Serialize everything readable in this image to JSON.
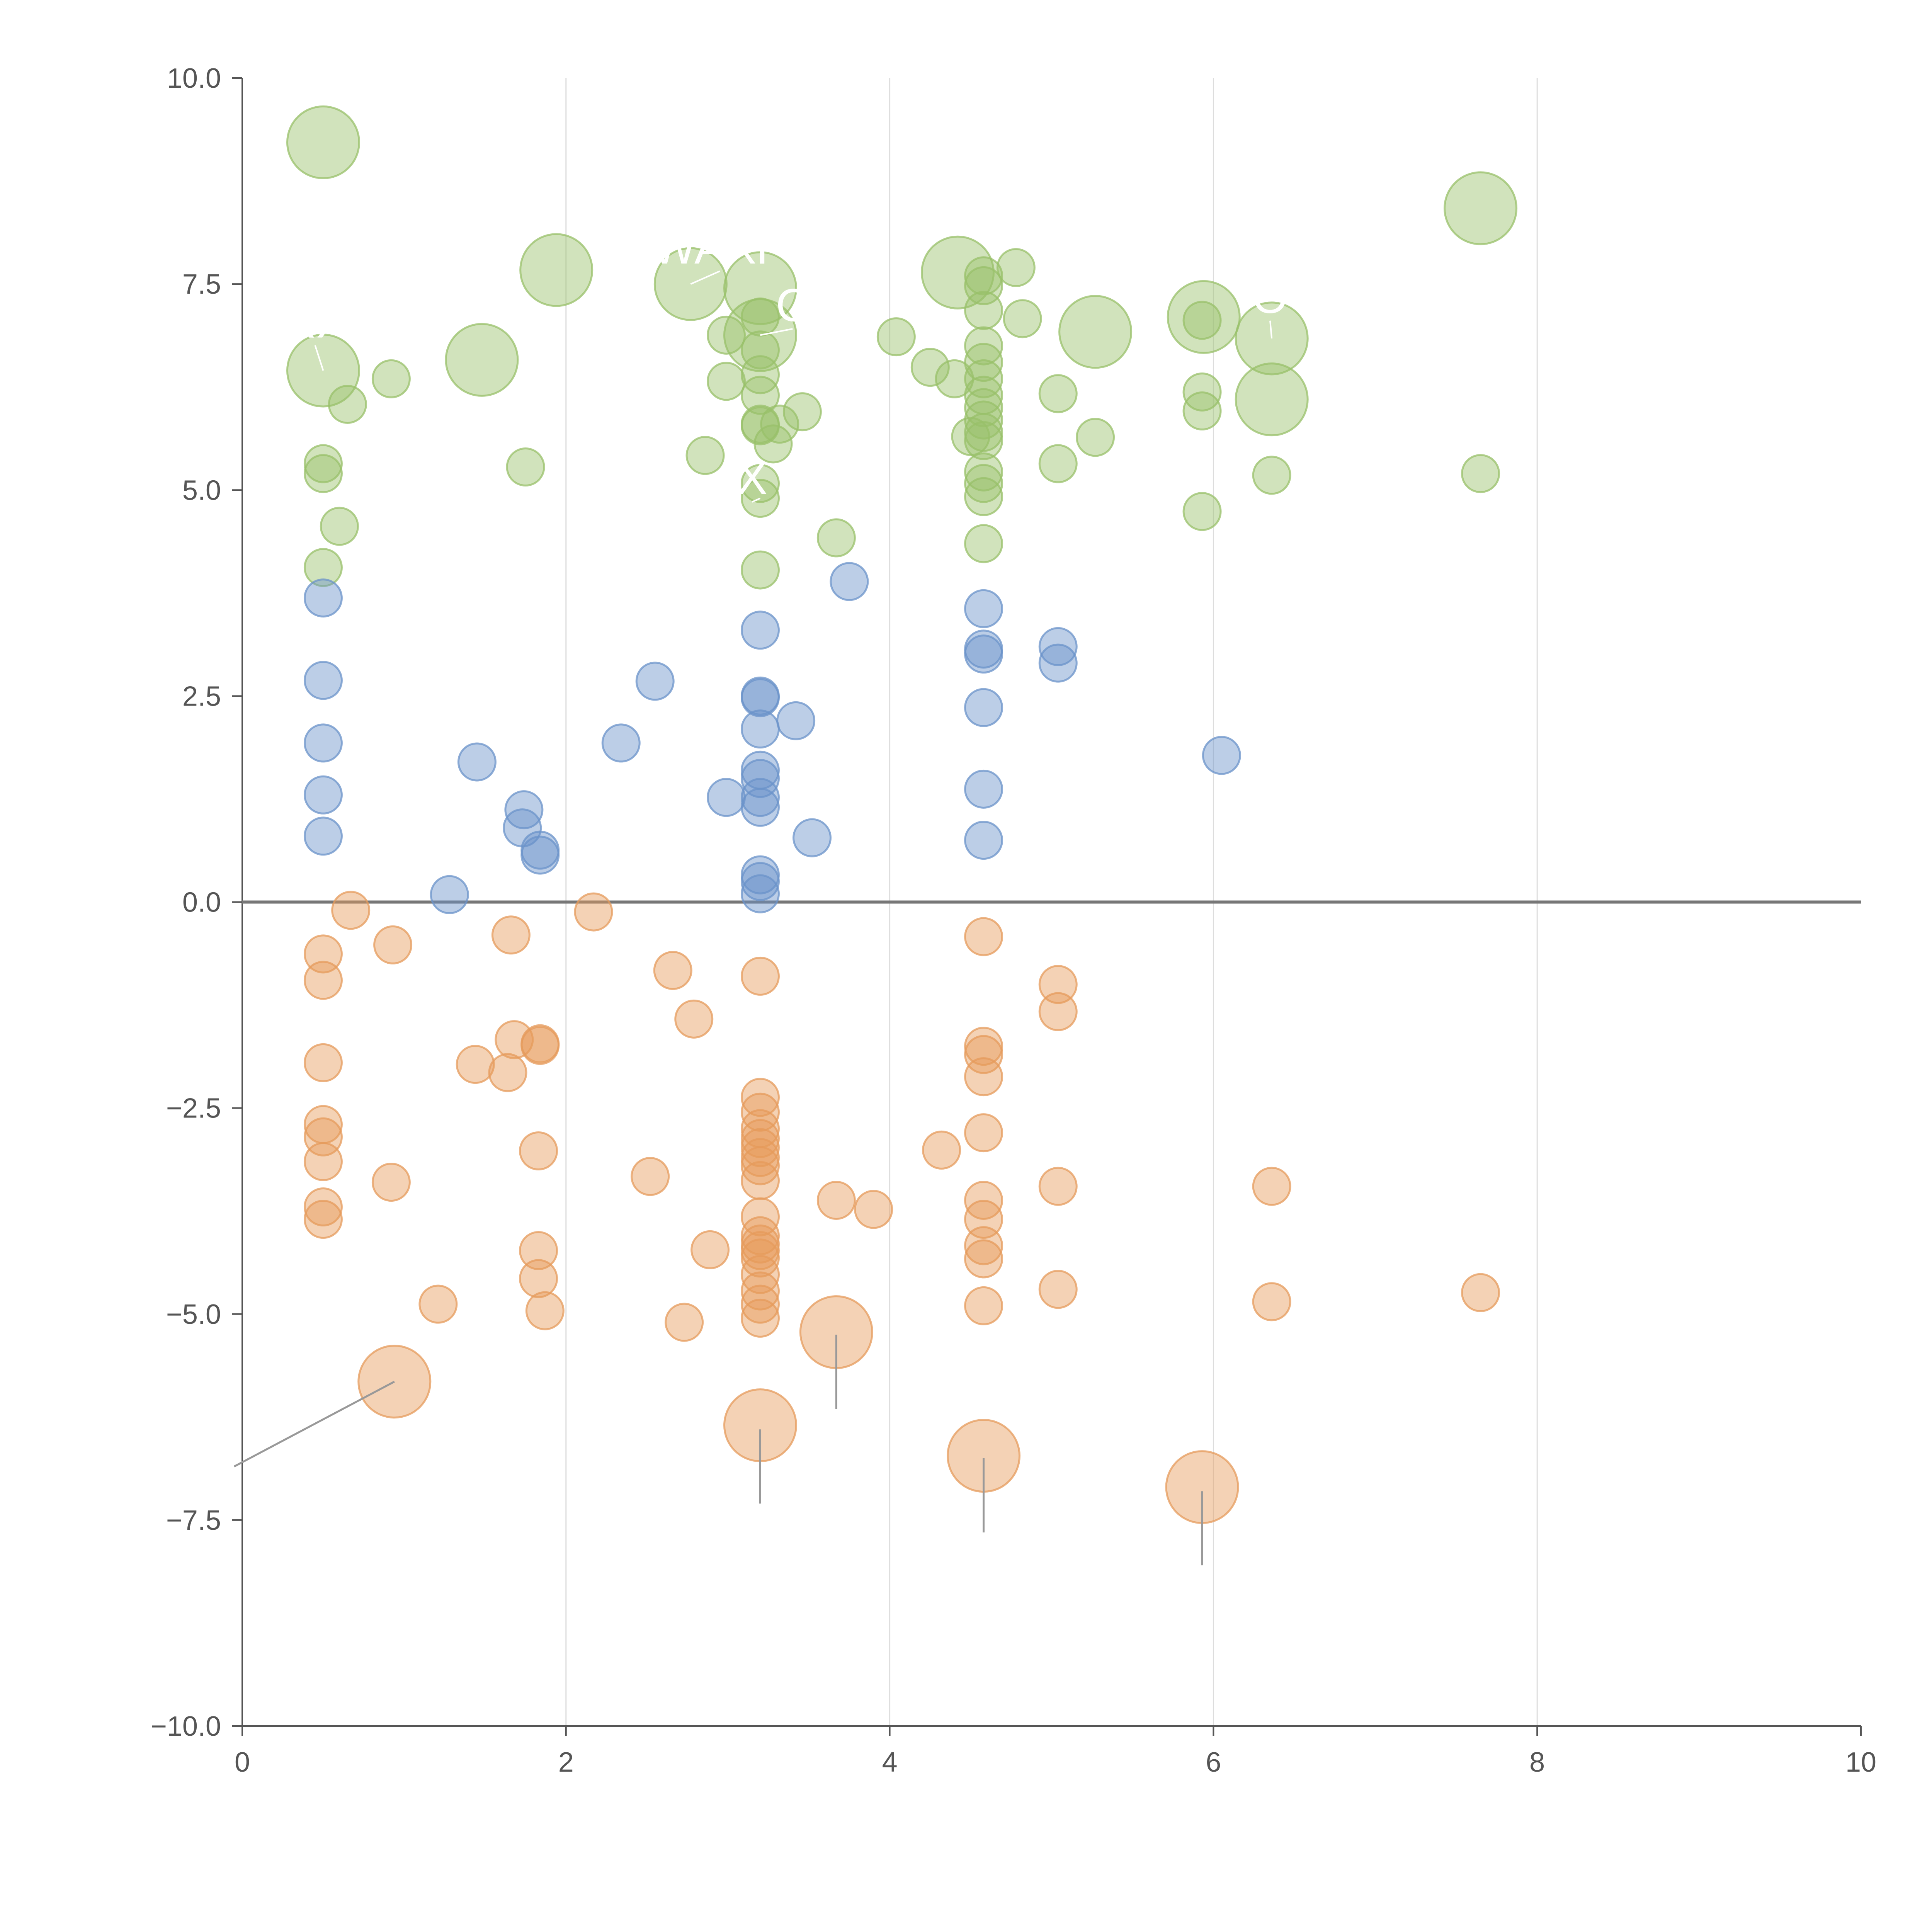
{
  "chart_data": {
    "type": "scatter",
    "subtype": "bubble",
    "title": "",
    "xlabel": "",
    "ylabel": "",
    "xlim": [
      0,
      10
    ],
    "ylim": [
      -10,
      10
    ],
    "x_ticks": [
      {
        "value": 0,
        "label": "0"
      },
      {
        "value": 2,
        "label": "2"
      },
      {
        "value": 4,
        "label": "4"
      },
      {
        "value": 6,
        "label": "6"
      },
      {
        "value": 8,
        "label": "8"
      },
      {
        "value": 10,
        "label": "10"
      }
    ],
    "y_ticks": [
      {
        "value": 10,
        "label": "10.0"
      },
      {
        "value": 7.5,
        "label": "7.5"
      },
      {
        "value": 5,
        "label": "5.0"
      },
      {
        "value": 2.5,
        "label": "2.5"
      },
      {
        "value": 0,
        "label": "0.0"
      },
      {
        "value": -2.5,
        "label": "−2.5"
      },
      {
        "value": -5,
        "label": "−5.0"
      },
      {
        "value": -7.5,
        "label": "−7.5"
      },
      {
        "value": -10,
        "label": "−10.0"
      }
    ],
    "vertical_gridlines_at": [
      2,
      4,
      6,
      8
    ],
    "zero_line": 0,
    "colors": {
      "high": "#98c06a",
      "mid": "#6b93c9",
      "low": "#e69b5c",
      "axis": "#555555",
      "grid": "#dddddd",
      "zero": "#777777",
      "leader": "#999999"
    },
    "series": [
      {
        "name": "high",
        "color_key": "high",
        "points": [
          {
            "x": 0.5,
            "y": 9.22,
            "s": 3
          },
          {
            "x": 1.94,
            "y": 7.67,
            "s": 3
          },
          {
            "x": 2.77,
            "y": 7.5,
            "s": 3
          },
          {
            "x": 3.2,
            "y": 7.45,
            "s": 3
          },
          {
            "x": 4.42,
            "y": 7.64,
            "s": 3
          },
          {
            "x": 5.27,
            "y": 6.92,
            "s": 3
          },
          {
            "x": 5.94,
            "y": 7.1,
            "s": 3
          },
          {
            "x": 6.36,
            "y": 6.84,
            "s": 3
          },
          {
            "x": 6.36,
            "y": 6.1,
            "s": 3
          },
          {
            "x": 7.65,
            "y": 8.42,
            "s": 3
          },
          {
            "x": 1.48,
            "y": 6.58,
            "s": 3
          },
          {
            "x": 0.5,
            "y": 6.45,
            "s": 3
          },
          {
            "x": 3.2,
            "y": 6.88,
            "s": 3
          },
          {
            "x": 0.65,
            "y": 6.04,
            "s": 1
          },
          {
            "x": 0.92,
            "y": 6.35,
            "s": 1
          },
          {
            "x": 0.5,
            "y": 5.32,
            "s": 1
          },
          {
            "x": 0.5,
            "y": 5.2,
            "s": 1
          },
          {
            "x": 0.6,
            "y": 4.56,
            "s": 1
          },
          {
            "x": 0.5,
            "y": 4.06,
            "s": 1
          },
          {
            "x": 1.75,
            "y": 5.28,
            "s": 1
          },
          {
            "x": 2.99,
            "y": 6.88,
            "s": 1
          },
          {
            "x": 2.99,
            "y": 6.32,
            "s": 1
          },
          {
            "x": 2.86,
            "y": 5.42,
            "s": 1
          },
          {
            "x": 3.2,
            "y": 7.1,
            "s": 1
          },
          {
            "x": 3.2,
            "y": 6.7,
            "s": 1
          },
          {
            "x": 3.2,
            "y": 6.4,
            "s": 1
          },
          {
            "x": 3.2,
            "y": 6.15,
            "s": 1
          },
          {
            "x": 3.2,
            "y": 5.8,
            "s": 1
          },
          {
            "x": 3.2,
            "y": 5.78,
            "s": 1
          },
          {
            "x": 3.28,
            "y": 5.56,
            "s": 1
          },
          {
            "x": 3.32,
            "y": 5.8,
            "s": 1
          },
          {
            "x": 3.46,
            "y": 5.95,
            "s": 1
          },
          {
            "x": 3.2,
            "y": 5.08,
            "s": 1
          },
          {
            "x": 3.2,
            "y": 4.9,
            "s": 1
          },
          {
            "x": 3.2,
            "y": 4.03,
            "s": 1
          },
          {
            "x": 3.67,
            "y": 4.42,
            "s": 1
          },
          {
            "x": 4.04,
            "y": 6.86,
            "s": 1
          },
          {
            "x": 4.25,
            "y": 6.49,
            "s": 1
          },
          {
            "x": 4.4,
            "y": 6.35,
            "s": 1
          },
          {
            "x": 4.78,
            "y": 7.7,
            "s": 1
          },
          {
            "x": 4.82,
            "y": 7.08,
            "s": 1
          },
          {
            "x": 4.58,
            "y": 7.6,
            "s": 1
          },
          {
            "x": 4.58,
            "y": 7.48,
            "s": 1
          },
          {
            "x": 4.58,
            "y": 7.18,
            "s": 1
          },
          {
            "x": 4.58,
            "y": 6.75,
            "s": 1
          },
          {
            "x": 4.58,
            "y": 6.55,
            "s": 1
          },
          {
            "x": 4.58,
            "y": 6.35,
            "s": 1
          },
          {
            "x": 4.58,
            "y": 6.15,
            "s": 1
          },
          {
            "x": 4.58,
            "y": 6.0,
            "s": 1
          },
          {
            "x": 4.58,
            "y": 5.85,
            "s": 1
          },
          {
            "x": 4.58,
            "y": 5.7,
            "s": 1
          },
          {
            "x": 4.5,
            "y": 5.65,
            "s": 1
          },
          {
            "x": 4.58,
            "y": 5.6,
            "s": 1
          },
          {
            "x": 4.58,
            "y": 5.22,
            "s": 1
          },
          {
            "x": 4.58,
            "y": 5.08,
            "s": 1
          },
          {
            "x": 4.58,
            "y": 4.92,
            "s": 1
          },
          {
            "x": 4.58,
            "y": 4.35,
            "s": 1
          },
          {
            "x": 5.04,
            "y": 6.17,
            "s": 1
          },
          {
            "x": 5.04,
            "y": 5.32,
            "s": 1
          },
          {
            "x": 5.27,
            "y": 5.64,
            "s": 1
          },
          {
            "x": 5.93,
            "y": 7.06,
            "s": 1
          },
          {
            "x": 5.93,
            "y": 6.19,
            "s": 1
          },
          {
            "x": 5.93,
            "y": 5.96,
            "s": 1
          },
          {
            "x": 5.93,
            "y": 4.74,
            "s": 1
          },
          {
            "x": 6.36,
            "y": 5.18,
            "s": 1
          },
          {
            "x": 7.65,
            "y": 5.2,
            "s": 1
          }
        ]
      },
      {
        "name": "mid",
        "color_key": "mid",
        "points": [
          {
            "x": 0.5,
            "y": 3.69,
            "s": 1
          },
          {
            "x": 0.5,
            "y": 2.69,
            "s": 1
          },
          {
            "x": 0.5,
            "y": 1.93,
            "s": 1
          },
          {
            "x": 0.5,
            "y": 1.3,
            "s": 1
          },
          {
            "x": 0.5,
            "y": 0.8,
            "s": 1
          },
          {
            "x": 1.45,
            "y": 1.7,
            "s": 1
          },
          {
            "x": 1.74,
            "y": 1.12,
            "s": 1
          },
          {
            "x": 1.73,
            "y": 0.9,
            "s": 1
          },
          {
            "x": 1.84,
            "y": 0.63,
            "s": 1
          },
          {
            "x": 1.84,
            "y": 0.57,
            "s": 1
          },
          {
            "x": 1.28,
            "y": 0.09,
            "s": 1
          },
          {
            "x": 2.34,
            "y": 1.93,
            "s": 1
          },
          {
            "x": 2.55,
            "y": 2.68,
            "s": 1
          },
          {
            "x": 2.99,
            "y": 1.27,
            "s": 1
          },
          {
            "x": 3.2,
            "y": 3.3,
            "s": 1
          },
          {
            "x": 3.2,
            "y": 2.5,
            "s": 1
          },
          {
            "x": 3.2,
            "y": 2.48,
            "s": 1
          },
          {
            "x": 3.2,
            "y": 2.1,
            "s": 1
          },
          {
            "x": 3.42,
            "y": 2.2,
            "s": 1
          },
          {
            "x": 3.2,
            "y": 1.6,
            "s": 1
          },
          {
            "x": 3.2,
            "y": 1.5,
            "s": 1
          },
          {
            "x": 3.2,
            "y": 1.27,
            "s": 1
          },
          {
            "x": 3.2,
            "y": 1.15,
            "s": 1
          },
          {
            "x": 3.52,
            "y": 0.78,
            "s": 1
          },
          {
            "x": 3.2,
            "y": 0.33,
            "s": 1
          },
          {
            "x": 3.2,
            "y": 0.25,
            "s": 1
          },
          {
            "x": 3.2,
            "y": 0.1,
            "s": 1
          },
          {
            "x": 3.75,
            "y": 3.89,
            "s": 1
          },
          {
            "x": 4.58,
            "y": 3.56,
            "s": 1
          },
          {
            "x": 4.58,
            "y": 3.07,
            "s": 1
          },
          {
            "x": 4.58,
            "y": 3.01,
            "s": 1
          },
          {
            "x": 4.58,
            "y": 2.36,
            "s": 1
          },
          {
            "x": 4.58,
            "y": 1.37,
            "s": 1
          },
          {
            "x": 4.58,
            "y": 0.75,
            "s": 1
          },
          {
            "x": 5.04,
            "y": 3.1,
            "s": 1
          },
          {
            "x": 5.04,
            "y": 2.9,
            "s": 1
          },
          {
            "x": 6.05,
            "y": 1.78,
            "s": 1
          }
        ]
      },
      {
        "name": "low",
        "color_key": "low",
        "points": [
          {
            "x": 0.67,
            "y": -0.1,
            "s": 1
          },
          {
            "x": 0.5,
            "y": -0.63,
            "s": 1
          },
          {
            "x": 0.5,
            "y": -0.95,
            "s": 1
          },
          {
            "x": 0.93,
            "y": -0.52,
            "s": 1
          },
          {
            "x": 0.5,
            "y": -1.95,
            "s": 1
          },
          {
            "x": 0.5,
            "y": -2.7,
            "s": 1
          },
          {
            "x": 0.5,
            "y": -2.85,
            "s": 1
          },
          {
            "x": 0.5,
            "y": -3.15,
            "s": 1
          },
          {
            "x": 0.5,
            "y": -3.7,
            "s": 1
          },
          {
            "x": 0.5,
            "y": -3.85,
            "s": 1
          },
          {
            "x": 0.92,
            "y": -3.4,
            "s": 1
          },
          {
            "x": 1.21,
            "y": -4.88,
            "s": 1
          },
          {
            "x": 1.66,
            "y": -0.4,
            "s": 1
          },
          {
            "x": 1.68,
            "y": -1.67,
            "s": 1
          },
          {
            "x": 1.44,
            "y": -1.97,
            "s": 1
          },
          {
            "x": 1.64,
            "y": -2.07,
            "s": 1
          },
          {
            "x": 1.84,
            "y": -1.72,
            "s": 1
          },
          {
            "x": 1.84,
            "y": -1.74,
            "s": 1
          },
          {
            "x": 1.83,
            "y": -3.02,
            "s": 1
          },
          {
            "x": 1.83,
            "y": -4.23,
            "s": 1
          },
          {
            "x": 1.83,
            "y": -4.57,
            "s": 1
          },
          {
            "x": 1.87,
            "y": -4.96,
            "s": 1
          },
          {
            "x": 2.17,
            "y": -0.12,
            "s": 1
          },
          {
            "x": 2.66,
            "y": -0.83,
            "s": 1
          },
          {
            "x": 2.79,
            "y": -1.42,
            "s": 1
          },
          {
            "x": 2.52,
            "y": -3.33,
            "s": 1
          },
          {
            "x": 2.89,
            "y": -4.22,
            "s": 1
          },
          {
            "x": 2.73,
            "y": -5.1,
            "s": 1
          },
          {
            "x": 3.2,
            "y": -0.9,
            "s": 1
          },
          {
            "x": 3.2,
            "y": -2.37,
            "s": 1
          },
          {
            "x": 3.2,
            "y": -2.55,
            "s": 1
          },
          {
            "x": 3.2,
            "y": -2.75,
            "s": 1
          },
          {
            "x": 3.2,
            "y": -2.87,
            "s": 1
          },
          {
            "x": 3.2,
            "y": -2.98,
            "s": 1
          },
          {
            "x": 3.2,
            "y": -3.1,
            "s": 1
          },
          {
            "x": 3.2,
            "y": -3.2,
            "s": 1
          },
          {
            "x": 3.2,
            "y": -3.38,
            "s": 1
          },
          {
            "x": 3.2,
            "y": -3.82,
            "s": 1
          },
          {
            "x": 3.2,
            "y": -4.05,
            "s": 1
          },
          {
            "x": 3.2,
            "y": -4.15,
            "s": 1
          },
          {
            "x": 3.2,
            "y": -4.23,
            "s": 1
          },
          {
            "x": 3.2,
            "y": -4.32,
            "s": 1
          },
          {
            "x": 3.2,
            "y": -4.52,
            "s": 1
          },
          {
            "x": 3.2,
            "y": -4.72,
            "s": 1
          },
          {
            "x": 3.2,
            "y": -4.88,
            "s": 1
          },
          {
            "x": 3.2,
            "y": -5.05,
            "s": 1
          },
          {
            "x": 3.67,
            "y": -3.62,
            "s": 1
          },
          {
            "x": 3.9,
            "y": -3.73,
            "s": 1
          },
          {
            "x": 4.32,
            "y": -3.01,
            "s": 1
          },
          {
            "x": 4.58,
            "y": -0.42,
            "s": 1
          },
          {
            "x": 4.58,
            "y": -1.75,
            "s": 1
          },
          {
            "x": 4.58,
            "y": -1.85,
            "s": 1
          },
          {
            "x": 4.58,
            "y": -2.12,
            "s": 1
          },
          {
            "x": 4.58,
            "y": -2.8,
            "s": 1
          },
          {
            "x": 4.58,
            "y": -3.62,
            "s": 1
          },
          {
            "x": 4.58,
            "y": -3.85,
            "s": 1
          },
          {
            "x": 4.58,
            "y": -4.17,
            "s": 1
          },
          {
            "x": 4.58,
            "y": -4.33,
            "s": 1
          },
          {
            "x": 4.58,
            "y": -4.9,
            "s": 1
          },
          {
            "x": 5.04,
            "y": -1.0,
            "s": 1
          },
          {
            "x": 5.04,
            "y": -1.33,
            "s": 1
          },
          {
            "x": 5.04,
            "y": -3.45,
            "s": 1
          },
          {
            "x": 5.04,
            "y": -4.7,
            "s": 1
          },
          {
            "x": 6.36,
            "y": -3.45,
            "s": 1
          },
          {
            "x": 6.36,
            "y": -4.85,
            "s": 1
          },
          {
            "x": 7.65,
            "y": -4.74,
            "s": 1
          },
          {
            "x": 0.94,
            "y": -5.82,
            "s": 3
          },
          {
            "x": 3.67,
            "y": -5.22,
            "s": 3
          },
          {
            "x": 3.2,
            "y": -6.35,
            "s": 3
          },
          {
            "x": 4.58,
            "y": -6.72,
            "s": 3
          },
          {
            "x": 5.93,
            "y": -7.1,
            "s": 3
          }
        ]
      }
    ],
    "annotations": [
      {
        "text": "WAXP",
        "x": 2.95,
        "y": 7.75,
        "px": 2.77,
        "py": 7.5
      },
      {
        "text": "C",
        "x": 3.4,
        "y": 7.05,
        "px": 3.2,
        "py": 6.88
      },
      {
        "text": "X",
        "x": 3.15,
        "y": 4.95,
        "px": 3.2,
        "py": 4.9
      },
      {
        "text": "RX",
        "x": 0.45,
        "y": 6.85,
        "px": 0.5,
        "py": 6.45
      },
      {
        "text": "O",
        "x": 6.35,
        "y": 7.15,
        "px": 6.36,
        "py": 6.84
      }
    ],
    "leader_lines": [
      {
        "x1": 0.94,
        "y1": -5.82,
        "x2": -0.05,
        "y2": -6.85
      },
      {
        "x1": 3.67,
        "y1": -5.25,
        "x2": 3.67,
        "y2": -6.15
      },
      {
        "x1": 3.2,
        "y1": -6.4,
        "x2": 3.2,
        "y2": -7.3
      },
      {
        "x1": 4.58,
        "y1": -6.75,
        "x2": 4.58,
        "y2": -7.65
      },
      {
        "x1": 5.93,
        "y1": -7.15,
        "x2": 5.93,
        "y2": -8.05
      }
    ]
  }
}
